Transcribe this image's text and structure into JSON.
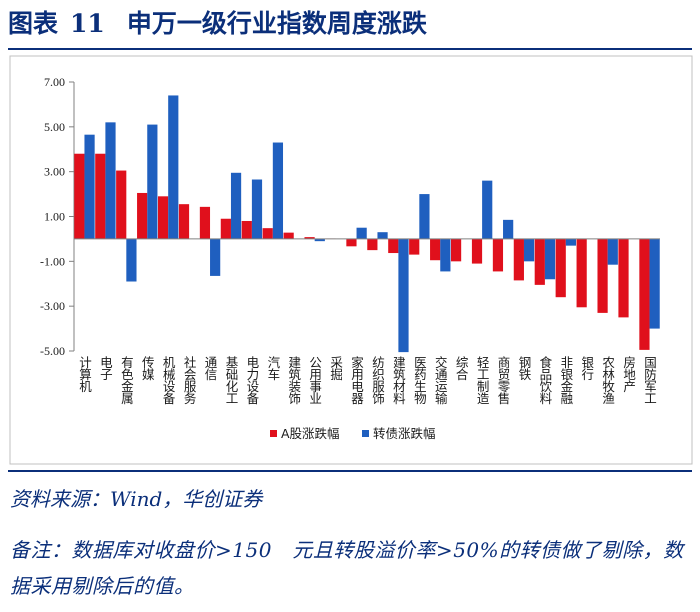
{
  "header": {
    "label": "图表",
    "number": "11",
    "title": "申万一级行业指数周度涨跌"
  },
  "footer": {
    "source": "资料来源：Wind，华创证券",
    "note": "备注：数据库对收盘价>150　元且转股溢价率>50%的转债做了剔除，数据采用剔除后的值。"
  },
  "colors": {
    "red": "#e0101c",
    "blue": "#1f5fbf",
    "axis": "#808080",
    "text": "#1a1a1a"
  },
  "chart_data": {
    "type": "bar",
    "title": "申万一级行业指数周度涨跌",
    "xlabel": "",
    "ylabel": "",
    "ylim": [
      -5,
      7
    ],
    "yticks": [
      "7.00",
      "5.00",
      "3.00",
      "1.00",
      "-1.00",
      "-3.00",
      "-5.00"
    ],
    "legend_position": "bottom",
    "categories": [
      "计算机",
      "电子",
      "有色金属",
      "传媒",
      "机械设备",
      "社会服务",
      "通信",
      "基础化工",
      "电力设备",
      "汽车",
      "建筑装饰",
      "公用事业",
      "采掘",
      "家用电器",
      "纺织服饰",
      "建筑材料",
      "医药生物",
      "交通运输",
      "综合",
      "轻工制造",
      "商贸零售",
      "钢铁",
      "食品饮料",
      "非银金融",
      "银行",
      "农林牧渔",
      "房地产",
      "国防军工"
    ],
    "series": [
      {
        "name": "A股涨跌幅",
        "color": "#e0101c",
        "values": [
          3.8,
          3.8,
          3.05,
          2.05,
          1.9,
          1.55,
          1.43,
          0.9,
          0.8,
          0.48,
          0.28,
          0.08,
          0.02,
          -0.33,
          -0.5,
          -0.63,
          -0.7,
          -0.95,
          -1.0,
          -1.1,
          -1.45,
          -1.85,
          -2.05,
          -2.6,
          -3.05,
          -3.3,
          -3.5,
          -4.95
        ]
      },
      {
        "name": "转债涨跌幅",
        "color": "#1f5fbf",
        "values": [
          4.65,
          5.2,
          -1.9,
          5.1,
          6.4,
          0.0,
          -1.65,
          2.95,
          2.65,
          4.3,
          0.0,
          -0.1,
          0.0,
          0.5,
          0.3,
          -5.05,
          2.0,
          -1.45,
          0.0,
          2.6,
          0.85,
          -1.0,
          -1.8,
          -0.3,
          0.0,
          -1.15,
          0.0,
          -4.0
        ]
      }
    ]
  }
}
